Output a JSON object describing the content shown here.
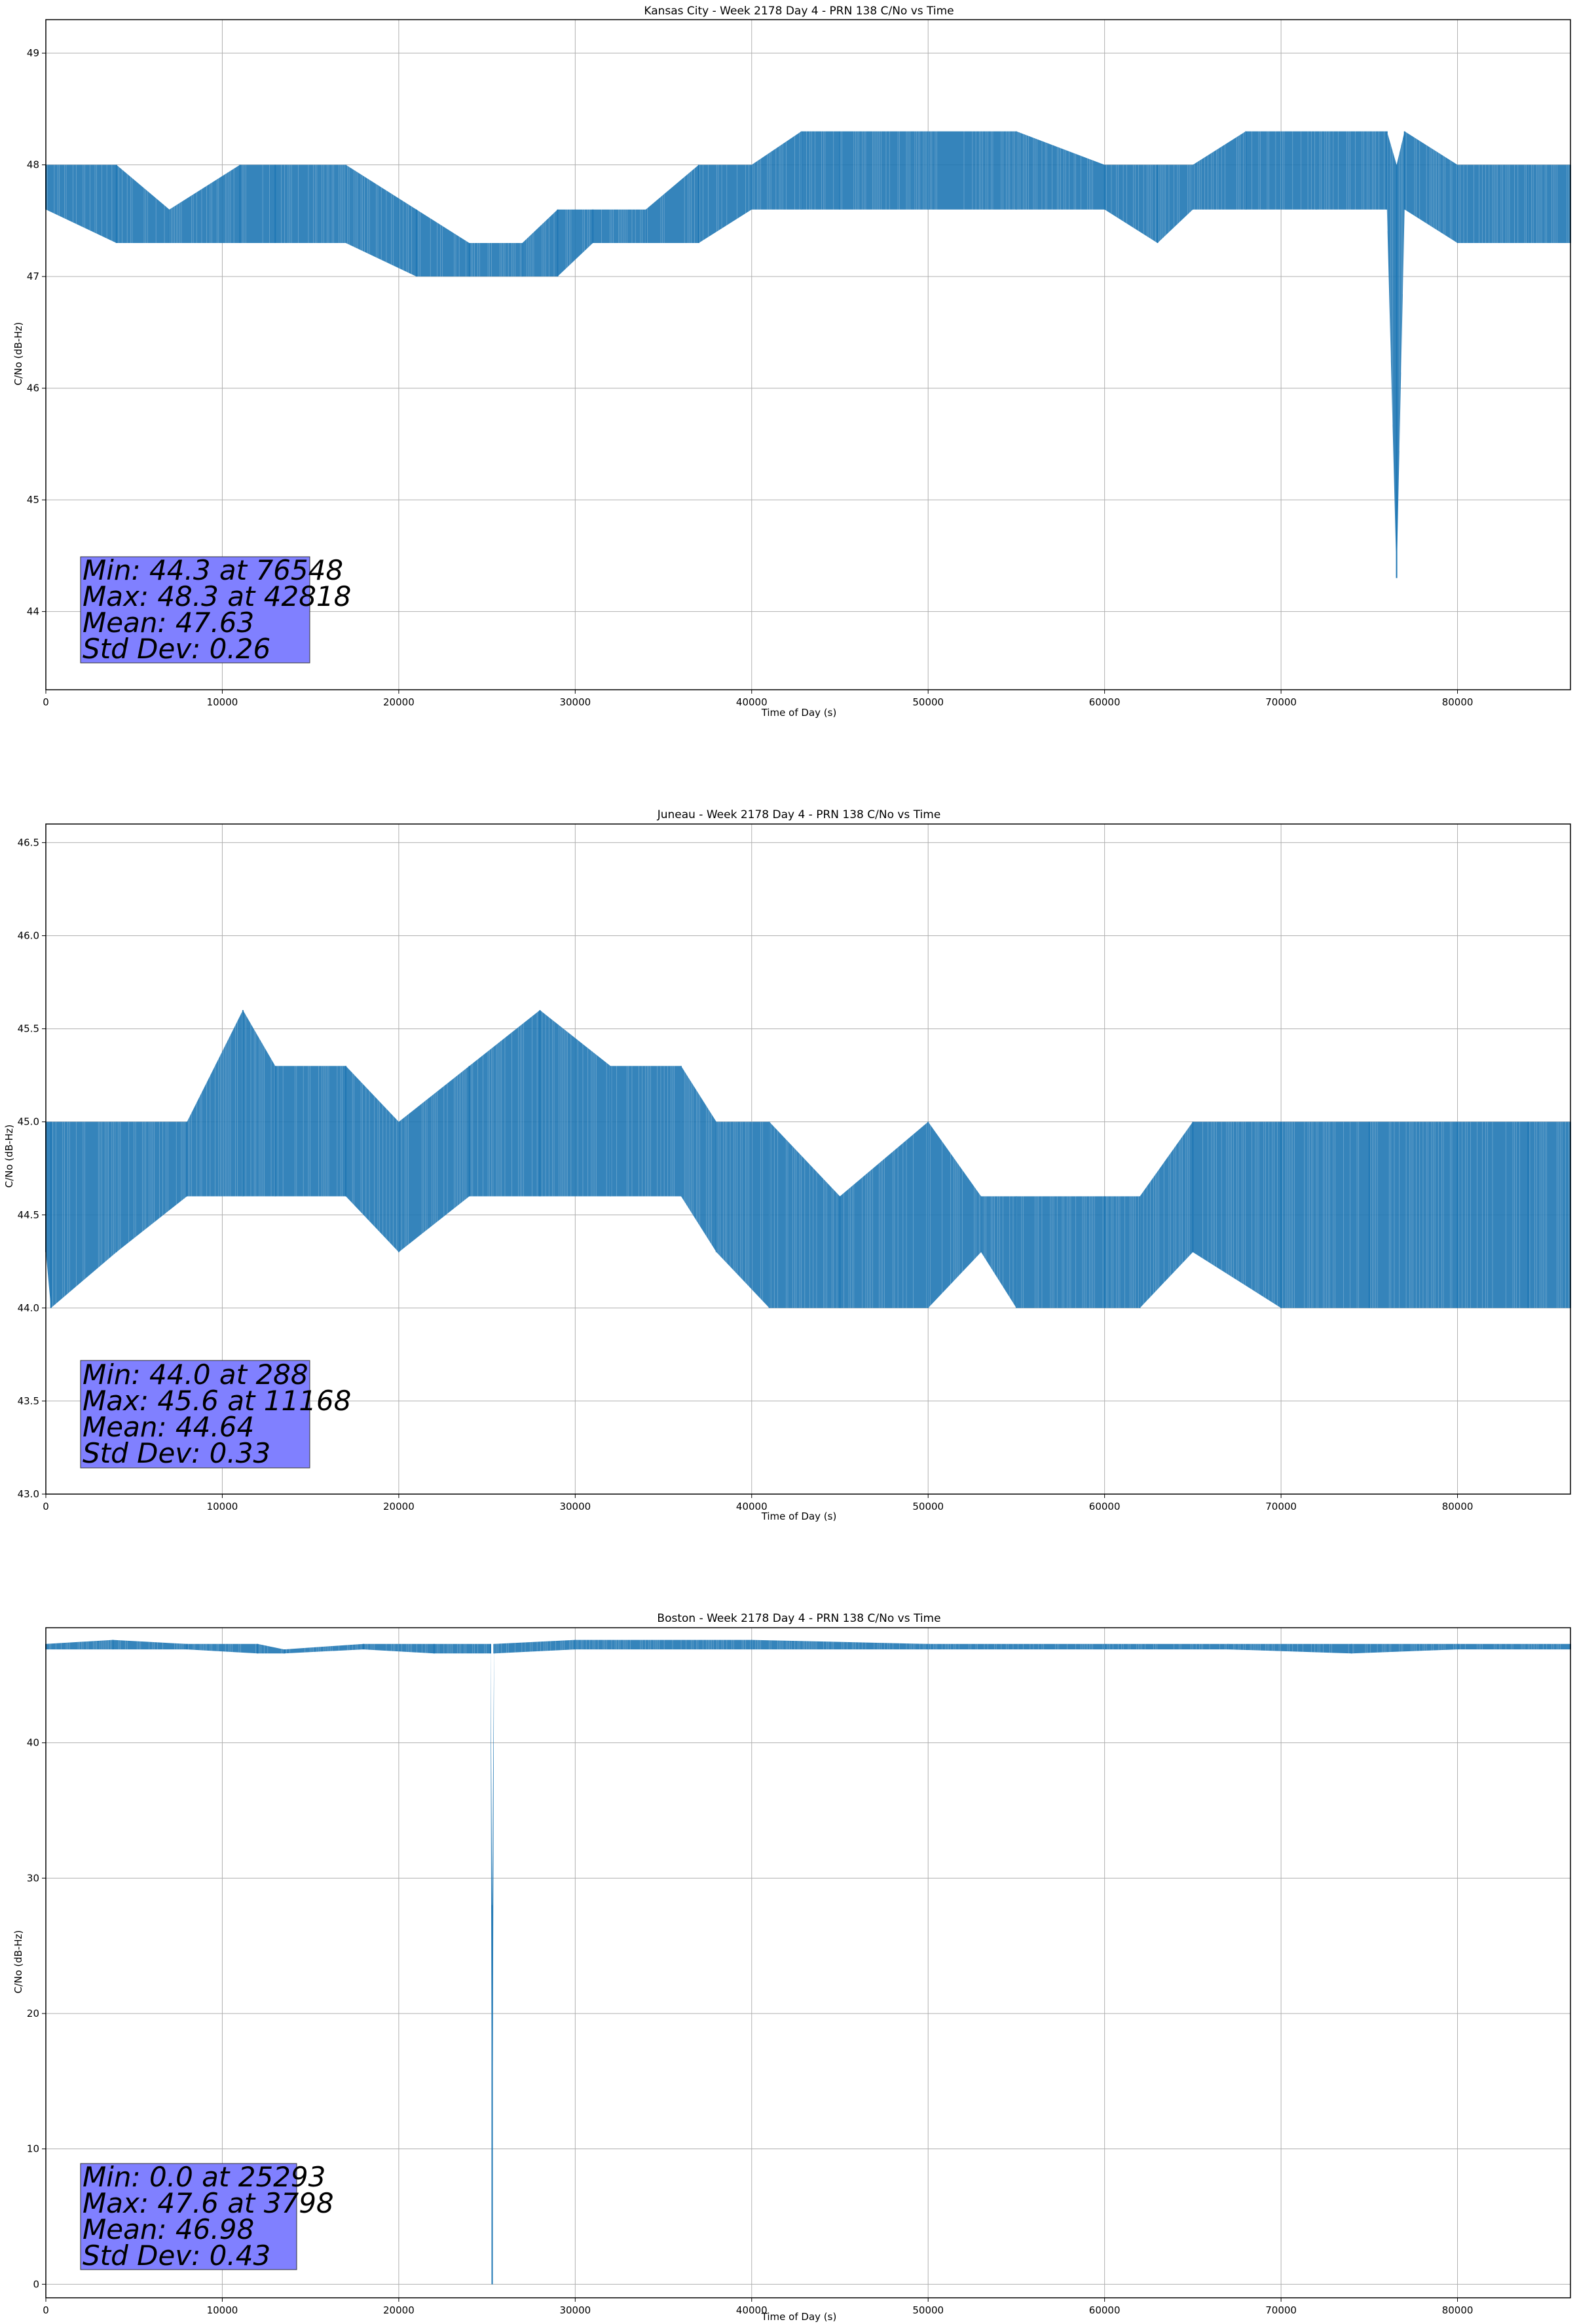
{
  "chart_data": [
    {
      "type": "line",
      "title": "Kansas City - Week 2178 Day 4 - PRN 138 C/No vs Time",
      "xlabel": "Time of Day (s)",
      "ylabel": "C/No (dB-Hz)",
      "xlim": [
        0,
        86400
      ],
      "ylim": [
        43.3,
        49.3
      ],
      "xticks": [
        0,
        10000,
        20000,
        30000,
        40000,
        50000,
        60000,
        70000,
        80000
      ],
      "yticks": [
        44,
        45,
        46,
        47,
        48,
        49
      ],
      "grid": true,
      "color": "#1f77b4",
      "series": [
        {
          "x": [
            0,
            4000,
            7000,
            11000,
            13000,
            17000,
            21000,
            24000,
            27000,
            29000,
            31000,
            34000,
            37000,
            40000,
            42818,
            45000,
            50000,
            55000,
            60000,
            63000,
            65000,
            68000,
            72000,
            76000,
            76548,
            77000,
            80000,
            84000,
            86400
          ],
          "y_low": [
            47.6,
            47.3,
            47.3,
            47.3,
            47.3,
            47.3,
            47.0,
            47.0,
            47.0,
            47.0,
            47.3,
            47.3,
            47.3,
            47.6,
            47.6,
            47.6,
            47.6,
            47.6,
            47.6,
            47.3,
            47.6,
            47.6,
            47.6,
            47.6,
            44.3,
            47.6,
            47.3,
            47.3,
            47.3
          ],
          "y_high": [
            48.0,
            48.0,
            47.6,
            48.0,
            48.0,
            48.0,
            47.6,
            47.3,
            47.3,
            47.6,
            47.6,
            47.6,
            48.0,
            48.0,
            48.3,
            48.3,
            48.3,
            48.3,
            48.0,
            48.0,
            48.0,
            48.3,
            48.3,
            48.3,
            48.0,
            48.3,
            48.0,
            48.0,
            48.0
          ]
        }
      ],
      "stats": {
        "min": "Min: 44.3 at 76548",
        "max": "Max: 48.3 at 42818",
        "mean": "Mean: 47.63",
        "std": "Std Dev: 0.26"
      }
    },
    {
      "type": "line",
      "title": "Juneau - Week 2178 Day 4 - PRN 138 C/No vs Time",
      "xlabel": "Time of Day (s)",
      "ylabel": "C/No (dB-Hz)",
      "xlim": [
        0,
        86400
      ],
      "ylim": [
        43.0,
        46.6
      ],
      "xticks": [
        0,
        10000,
        20000,
        30000,
        40000,
        50000,
        60000,
        70000,
        80000
      ],
      "yticks": [
        43.0,
        43.5,
        44.0,
        44.5,
        45.0,
        45.5,
        46.0,
        46.5
      ],
      "grid": true,
      "color": "#1f77b4",
      "series": [
        {
          "x": [
            0,
            288,
            4000,
            8000,
            11168,
            13000,
            17000,
            20000,
            24000,
            28000,
            32000,
            36000,
            38000,
            41000,
            45000,
            50000,
            53000,
            55000,
            60000,
            62000,
            65000,
            70000,
            75000,
            80000,
            84000,
            86400
          ],
          "y_low": [
            44.3,
            44.0,
            44.3,
            44.6,
            44.6,
            44.6,
            44.6,
            44.3,
            44.6,
            44.6,
            44.6,
            44.6,
            44.3,
            44.0,
            44.0,
            44.0,
            44.3,
            44.0,
            44.0,
            44.0,
            44.3,
            44.0,
            44.0,
            44.0,
            44.0,
            44.0
          ],
          "y_high": [
            45.0,
            45.0,
            45.0,
            45.0,
            45.6,
            45.3,
            45.3,
            45.0,
            45.3,
            45.6,
            45.3,
            45.3,
            45.0,
            45.0,
            44.6,
            45.0,
            44.6,
            44.6,
            44.6,
            44.6,
            45.0,
            45.0,
            45.0,
            45.0,
            45.0,
            45.0
          ]
        }
      ],
      "stats": {
        "min": "Min: 44.0 at 288",
        "max": "Max: 45.6 at 11168",
        "mean": "Mean: 44.64",
        "std": "Std Dev: 0.33"
      }
    },
    {
      "type": "line",
      "title": "Boston - Week 2178 Day 4 - PRN 138 C/No vs Time",
      "xlabel": "Time of Day (s)",
      "ylabel": "C/No (dB-Hz)",
      "xlim": [
        0,
        86400
      ],
      "ylim": [
        -1,
        48.5
      ],
      "xticks": [
        0,
        10000,
        20000,
        30000,
        40000,
        50000,
        60000,
        70000,
        80000
      ],
      "yticks": [
        0,
        10,
        20,
        30,
        40
      ],
      "grid": true,
      "color": "#1f77b4",
      "series": [
        {
          "x": [
            0,
            3798,
            8000,
            12000,
            13500,
            18000,
            22000,
            25200,
            25293,
            25400,
            30000,
            40000,
            50000,
            60000,
            67000,
            74000,
            80000,
            86400
          ],
          "y_low": [
            46.9,
            46.9,
            46.9,
            46.6,
            46.6,
            46.9,
            46.6,
            46.6,
            0.0,
            46.6,
            46.9,
            46.9,
            46.9,
            46.9,
            46.9,
            46.6,
            46.9,
            46.9
          ],
          "y_high": [
            47.3,
            47.6,
            47.3,
            47.3,
            46.9,
            47.3,
            47.3,
            47.3,
            28.0,
            47.3,
            47.6,
            47.6,
            47.3,
            47.3,
            47.3,
            47.3,
            47.3,
            47.3
          ]
        }
      ],
      "stats": {
        "min": "Min: 0.0 at 25293",
        "max": "Max: 47.6 at 3798",
        "mean": "Mean: 46.98",
        "std": "Std Dev: 0.43"
      }
    }
  ]
}
